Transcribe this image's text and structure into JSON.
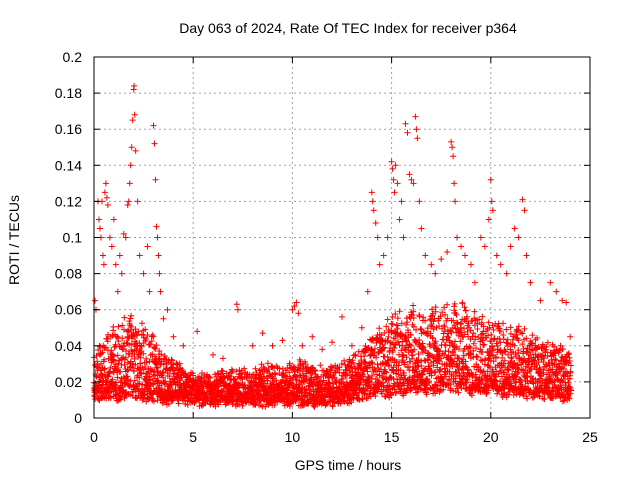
{
  "chart_data": {
    "type": "scatter",
    "title": "Day 063 of 2024, Rate Of TEC Index for receiver p364",
    "xlabel": "GPS time / hours",
    "ylabel": "ROTI / TECUs",
    "xlim": [
      0,
      25
    ],
    "ylim": [
      0,
      0.2
    ],
    "xticks": [
      0,
      5,
      10,
      15,
      20,
      25
    ],
    "xtick_labels": [
      "0",
      "5",
      "10",
      "15",
      "20",
      "25"
    ],
    "yticks": [
      0,
      0.02,
      0.04,
      0.06,
      0.08,
      0.1,
      0.12,
      0.14,
      0.16,
      0.18,
      0.2
    ],
    "ytick_labels": [
      "0",
      "0.02",
      "0.04",
      "0.06",
      "0.08",
      "0.1",
      "0.12",
      "0.14",
      "0.16",
      "0.18",
      "0.2"
    ],
    "grid": true,
    "marker": "plus",
    "marker_color": "#ff0000",
    "series": [
      {
        "name": "ROTI",
        "points": [
          [
            0.05,
            0.065
          ],
          [
            0.1,
            0.06
          ],
          [
            0.2,
            0.12
          ],
          [
            0.25,
            0.11
          ],
          [
            0.3,
            0.105
          ],
          [
            0.35,
            0.1
          ],
          [
            0.4,
            0.12
          ],
          [
            0.45,
            0.09
          ],
          [
            0.5,
            0.085
          ],
          [
            0.55,
            0.125
          ],
          [
            0.6,
            0.13
          ],
          [
            0.65,
            0.122
          ],
          [
            0.7,
            0.118
          ],
          [
            0.8,
            0.1
          ],
          [
            0.9,
            0.095
          ],
          [
            1.0,
            0.11
          ],
          [
            1.1,
            0.085
          ],
          [
            1.2,
            0.07
          ],
          [
            1.3,
            0.09
          ],
          [
            1.4,
            0.08
          ],
          [
            1.5,
            0.102
          ],
          [
            1.6,
            0.1
          ],
          [
            1.7,
            0.118
          ],
          [
            1.75,
            0.12
          ],
          [
            1.8,
            0.13
          ],
          [
            1.85,
            0.14
          ],
          [
            1.9,
            0.15
          ],
          [
            1.95,
            0.165
          ],
          [
            2.0,
            0.182
          ],
          [
            2.02,
            0.184
          ],
          [
            2.05,
            0.168
          ],
          [
            2.1,
            0.148
          ],
          [
            2.2,
            0.12
          ],
          [
            2.3,
            0.09
          ],
          [
            2.5,
            0.08
          ],
          [
            2.7,
            0.095
          ],
          [
            2.8,
            0.07
          ],
          [
            3.0,
            0.162
          ],
          [
            3.05,
            0.152
          ],
          [
            3.1,
            0.132
          ],
          [
            3.15,
            0.106
          ],
          [
            3.2,
            0.1
          ],
          [
            3.25,
            0.09
          ],
          [
            3.3,
            0.08
          ],
          [
            3.35,
            0.07
          ],
          [
            3.5,
            0.055
          ],
          [
            3.7,
            0.06
          ],
          [
            4.0,
            0.045
          ],
          [
            4.5,
            0.04
          ],
          [
            5.2,
            0.048
          ],
          [
            6.0,
            0.035
          ],
          [
            6.5,
            0.033
          ],
          [
            7.2,
            0.063
          ],
          [
            7.25,
            0.06
          ],
          [
            8.0,
            0.04
          ],
          [
            8.5,
            0.047
          ],
          [
            9.0,
            0.04
          ],
          [
            9.5,
            0.043
          ],
          [
            10.0,
            0.06
          ],
          [
            10.1,
            0.062
          ],
          [
            10.2,
            0.064
          ],
          [
            10.3,
            0.058
          ],
          [
            10.5,
            0.04
          ],
          [
            11.0,
            0.045
          ],
          [
            11.5,
            0.038
          ],
          [
            12.0,
            0.042
          ],
          [
            12.5,
            0.056
          ],
          [
            13.0,
            0.04
          ],
          [
            13.5,
            0.05
          ],
          [
            13.8,
            0.07
          ],
          [
            14.0,
            0.125
          ],
          [
            14.05,
            0.12
          ],
          [
            14.1,
            0.115
          ],
          [
            14.2,
            0.108
          ],
          [
            14.3,
            0.1
          ],
          [
            14.4,
            0.085
          ],
          [
            14.6,
            0.09
          ],
          [
            14.8,
            0.1
          ],
          [
            15.0,
            0.142
          ],
          [
            15.05,
            0.138
          ],
          [
            15.1,
            0.132
          ],
          [
            15.15,
            0.125
          ],
          [
            15.2,
            0.14
          ],
          [
            15.3,
            0.13
          ],
          [
            15.4,
            0.11
          ],
          [
            15.5,
            0.12
          ],
          [
            15.6,
            0.1
          ],
          [
            15.7,
            0.163
          ],
          [
            15.8,
            0.158
          ],
          [
            15.9,
            0.135
          ],
          [
            16.0,
            0.132
          ],
          [
            16.1,
            0.13
          ],
          [
            16.2,
            0.167
          ],
          [
            16.25,
            0.16
          ],
          [
            16.3,
            0.155
          ],
          [
            16.4,
            0.12
          ],
          [
            16.5,
            0.105
          ],
          [
            16.7,
            0.09
          ],
          [
            17.0,
            0.085
          ],
          [
            17.2,
            0.08
          ],
          [
            17.5,
            0.088
          ],
          [
            17.8,
            0.092
          ],
          [
            18.0,
            0.153
          ],
          [
            18.05,
            0.15
          ],
          [
            18.1,
            0.145
          ],
          [
            18.15,
            0.13
          ],
          [
            18.2,
            0.12
          ],
          [
            18.3,
            0.1
          ],
          [
            18.5,
            0.095
          ],
          [
            18.7,
            0.09
          ],
          [
            19.0,
            0.085
          ],
          [
            19.2,
            0.075
          ],
          [
            19.5,
            0.1
          ],
          [
            19.7,
            0.095
          ],
          [
            19.9,
            0.11
          ],
          [
            20.0,
            0.132
          ],
          [
            20.05,
            0.12
          ],
          [
            20.1,
            0.115
          ],
          [
            20.3,
            0.09
          ],
          [
            20.5,
            0.085
          ],
          [
            20.8,
            0.08
          ],
          [
            21.0,
            0.095
          ],
          [
            21.2,
            0.105
          ],
          [
            21.4,
            0.1
          ],
          [
            21.6,
            0.121
          ],
          [
            21.7,
            0.115
          ],
          [
            21.8,
            0.09
          ],
          [
            22.0,
            0.075
          ],
          [
            22.5,
            0.065
          ],
          [
            23.0,
            0.075
          ],
          [
            23.3,
            0.07
          ],
          [
            23.6,
            0.065
          ],
          [
            23.8,
            0.064
          ],
          [
            24.0,
            0.045
          ]
        ]
      }
    ],
    "background_band": [
      [
        0.0,
        0.012,
        0.035
      ],
      [
        0.5,
        0.012,
        0.045
      ],
      [
        1.0,
        0.012,
        0.05
      ],
      [
        1.5,
        0.012,
        0.055
      ],
      [
        2.0,
        0.013,
        0.055
      ],
      [
        2.5,
        0.012,
        0.05
      ],
      [
        3.0,
        0.012,
        0.045
      ],
      [
        3.5,
        0.01,
        0.035
      ],
      [
        4.0,
        0.01,
        0.03
      ],
      [
        4.5,
        0.01,
        0.028
      ],
      [
        5.0,
        0.01,
        0.025
      ],
      [
        5.5,
        0.009,
        0.024
      ],
      [
        6.0,
        0.009,
        0.024
      ],
      [
        6.5,
        0.009,
        0.025
      ],
      [
        7.0,
        0.009,
        0.025
      ],
      [
        7.5,
        0.009,
        0.025
      ],
      [
        8.0,
        0.009,
        0.026
      ],
      [
        8.5,
        0.009,
        0.028
      ],
      [
        9.0,
        0.009,
        0.028
      ],
      [
        9.5,
        0.009,
        0.028
      ],
      [
        10.0,
        0.009,
        0.03
      ],
      [
        10.5,
        0.009,
        0.03
      ],
      [
        11.0,
        0.009,
        0.03
      ],
      [
        11.5,
        0.009,
        0.028
      ],
      [
        12.0,
        0.009,
        0.028
      ],
      [
        12.5,
        0.01,
        0.03
      ],
      [
        13.0,
        0.011,
        0.033
      ],
      [
        13.5,
        0.012,
        0.038
      ],
      [
        14.0,
        0.013,
        0.045
      ],
      [
        14.5,
        0.013,
        0.05
      ],
      [
        15.0,
        0.014,
        0.055
      ],
      [
        15.5,
        0.015,
        0.06
      ],
      [
        16.0,
        0.015,
        0.06
      ],
      [
        16.5,
        0.015,
        0.058
      ],
      [
        17.0,
        0.015,
        0.06
      ],
      [
        17.5,
        0.016,
        0.062
      ],
      [
        18.0,
        0.016,
        0.064
      ],
      [
        18.5,
        0.016,
        0.062
      ],
      [
        19.0,
        0.015,
        0.058
      ],
      [
        19.5,
        0.015,
        0.055
      ],
      [
        20.0,
        0.015,
        0.055
      ],
      [
        20.5,
        0.014,
        0.05
      ],
      [
        21.0,
        0.014,
        0.05
      ],
      [
        21.5,
        0.014,
        0.05
      ],
      [
        22.0,
        0.013,
        0.045
      ],
      [
        22.5,
        0.013,
        0.042
      ],
      [
        23.0,
        0.013,
        0.04
      ],
      [
        23.5,
        0.012,
        0.038
      ],
      [
        24.0,
        0.012,
        0.035
      ]
    ]
  }
}
